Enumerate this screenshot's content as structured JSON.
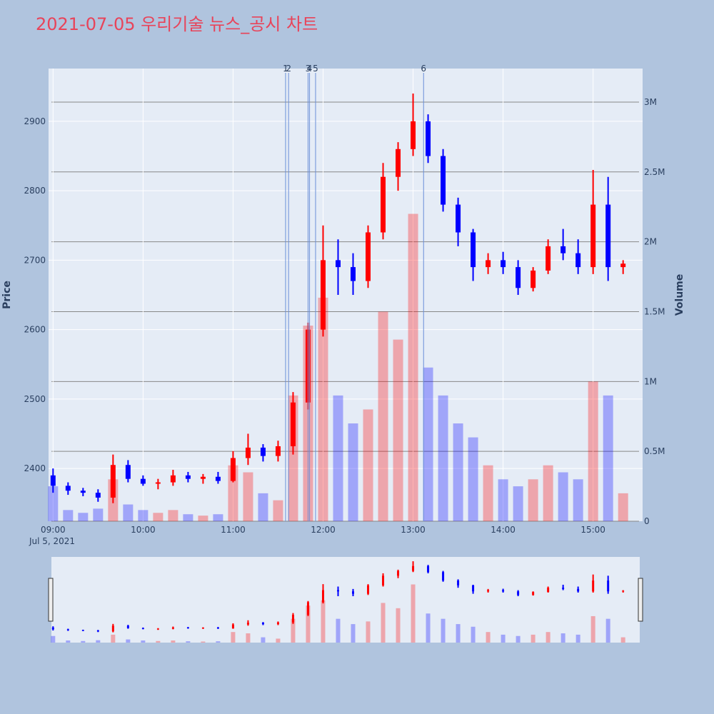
{
  "chart_data": {
    "type": "candlestick",
    "title": "2021-07-05 우리기술 뉴스_공시 차트",
    "y_label": "Price",
    "y2_label": "Volume",
    "x_date_label": "Jul 5, 2021",
    "increasing_color": "#ff0000",
    "decreasing_color": "#0000ff",
    "x": [
      "09:00",
      "09:10",
      "09:20",
      "09:30",
      "09:40",
      "09:50",
      "10:00",
      "10:10",
      "10:20",
      "10:30",
      "10:40",
      "10:50",
      "11:00",
      "11:10",
      "11:20",
      "11:30",
      "11:40",
      "11:50",
      "12:00",
      "12:10",
      "12:20",
      "12:30",
      "12:40",
      "12:50",
      "13:00",
      "13:10",
      "13:20",
      "13:30",
      "13:40",
      "13:50",
      "14:00",
      "14:10",
      "14:20",
      "14:30",
      "14:40",
      "14:50",
      "15:00",
      "15:10",
      "15:20"
    ],
    "open": [
      2390,
      2375,
      2368,
      2365,
      2358,
      2405,
      2385,
      2378,
      2380,
      2390,
      2385,
      2388,
      2382,
      2415,
      2430,
      2418,
      2432,
      2495,
      2600,
      2700,
      2690,
      2670,
      2740,
      2820,
      2860,
      2900,
      2850,
      2780,
      2740,
      2690,
      2700,
      2690,
      2660,
      2685,
      2720,
      2710,
      2690,
      2780,
      2690
    ],
    "high": [
      2400,
      2380,
      2372,
      2370,
      2420,
      2412,
      2390,
      2385,
      2398,
      2395,
      2392,
      2395,
      2425,
      2450,
      2435,
      2440,
      2510,
      2610,
      2750,
      2730,
      2710,
      2750,
      2840,
      2870,
      2940,
      2910,
      2860,
      2790,
      2745,
      2710,
      2712,
      2700,
      2690,
      2730,
      2745,
      2730,
      2830,
      2820,
      2700
    ],
    "low": [
      2365,
      2362,
      2360,
      2352,
      2350,
      2380,
      2375,
      2370,
      2375,
      2380,
      2378,
      2378,
      2380,
      2405,
      2410,
      2410,
      2420,
      2485,
      2590,
      2650,
      2650,
      2660,
      2730,
      2800,
      2850,
      2840,
      2770,
      2720,
      2670,
      2680,
      2680,
      2650,
      2655,
      2680,
      2700,
      2680,
      2680,
      2670,
      2680
    ],
    "close": [
      2375,
      2368,
      2365,
      2358,
      2405,
      2385,
      2378,
      2380,
      2390,
      2385,
      2388,
      2382,
      2415,
      2430,
      2418,
      2432,
      2495,
      2600,
      2700,
      2690,
      2670,
      2740,
      2820,
      2860,
      2900,
      2850,
      2780,
      2740,
      2690,
      2700,
      2690,
      2660,
      2685,
      2720,
      2710,
      2690,
      2780,
      2690,
      2695
    ],
    "volume": [
      250000,
      80000,
      60000,
      90000,
      300000,
      120000,
      80000,
      60000,
      80000,
      50000,
      40000,
      50000,
      400000,
      350000,
      200000,
      150000,
      900000,
      1400000,
      1600000,
      900000,
      700000,
      800000,
      1500000,
      1300000,
      2200000,
      1100000,
      900000,
      700000,
      600000,
      400000,
      300000,
      250000,
      300000,
      400000,
      350000,
      300000,
      1000000,
      900000,
      200000
    ],
    "xlim": [
      "08:57",
      "15:33"
    ],
    "xticks": [
      "09:00",
      "10:00",
      "11:00",
      "12:00",
      "13:00",
      "14:00",
      "15:00"
    ],
    "ylim": [
      2324,
      2976
    ],
    "yticks": [
      2400,
      2500,
      2600,
      2700,
      2800,
      2900
    ],
    "y2lim": [
      0,
      3240000
    ],
    "y2ticks": [
      0,
      {
        "value": 500000,
        "label": "0.5M"
      },
      {
        "value": 1000000,
        "label": "1M"
      },
      {
        "value": 1500000,
        "label": "1.5M"
      },
      {
        "value": 2000000,
        "label": "2M"
      },
      {
        "value": 2500000,
        "label": "2.5M"
      },
      {
        "value": 3000000,
        "label": "3M"
      }
    ],
    "annotations": [
      {
        "x": "11:35",
        "text": "1"
      },
      {
        "x": "11:37",
        "text": "2"
      },
      {
        "x": "11:50",
        "text": "3"
      },
      {
        "x": "11:51",
        "text": "4"
      },
      {
        "x": "11:55",
        "text": "5"
      },
      {
        "x": "13:07",
        "text": "6"
      }
    ]
  }
}
